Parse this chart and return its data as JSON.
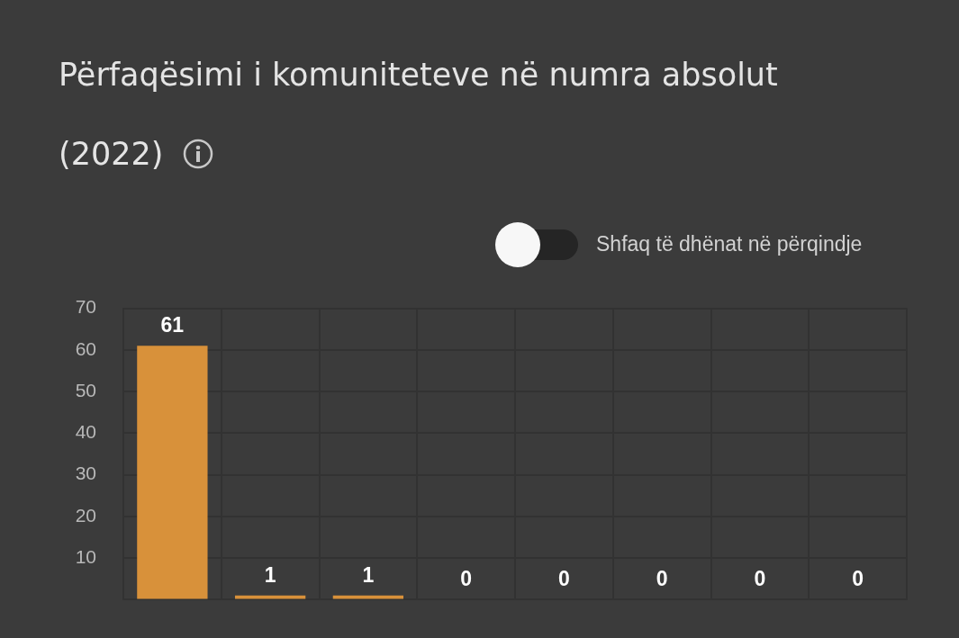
{
  "chart_data": {
    "type": "bar",
    "title": "Përfaqësimi i komuniteteve në numra absolut (2022)",
    "annotations": [
      "Shfaq të dhënat në përqindje"
    ],
    "categories": [
      null,
      null,
      null,
      null,
      null,
      null,
      null,
      null
    ],
    "values": [
      61,
      1,
      1,
      0,
      0,
      0,
      0,
      0
    ],
    "color": "#d8913a",
    "ylim": [
      0,
      70
    ],
    "yticks": [
      {
        "value": 0,
        "label": null
      },
      10,
      20,
      30,
      40,
      50,
      60,
      70
    ],
    "grid": true,
    "data_labels": true,
    "tick_labels": "y"
  }
}
